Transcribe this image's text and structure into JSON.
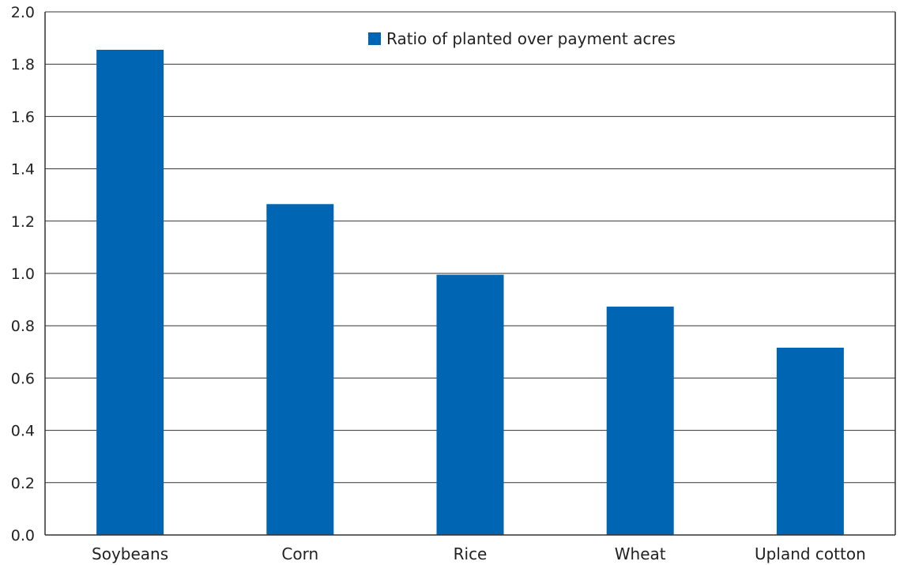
{
  "chart_data": {
    "type": "bar",
    "categories": [
      "Soybeans",
      "Corn",
      "Rice",
      "Wheat",
      "Upland cotton"
    ],
    "series": [
      {
        "name": "Ratio of planted over payment acres",
        "values": [
          1.855,
          1.265,
          0.995,
          0.873,
          0.716
        ]
      }
    ],
    "xlabel": "",
    "ylabel": "",
    "ylim": [
      0,
      2.0
    ],
    "yticks": [
      "0.0",
      "0.2",
      "0.4",
      "0.6",
      "0.8",
      "1.0",
      "1.2",
      "1.4",
      "1.6",
      "1.8",
      "2.0"
    ],
    "grid": "horizontal",
    "legend_position": "top-center",
    "bar_color": "#0066b3",
    "grid_color": "#333333"
  }
}
